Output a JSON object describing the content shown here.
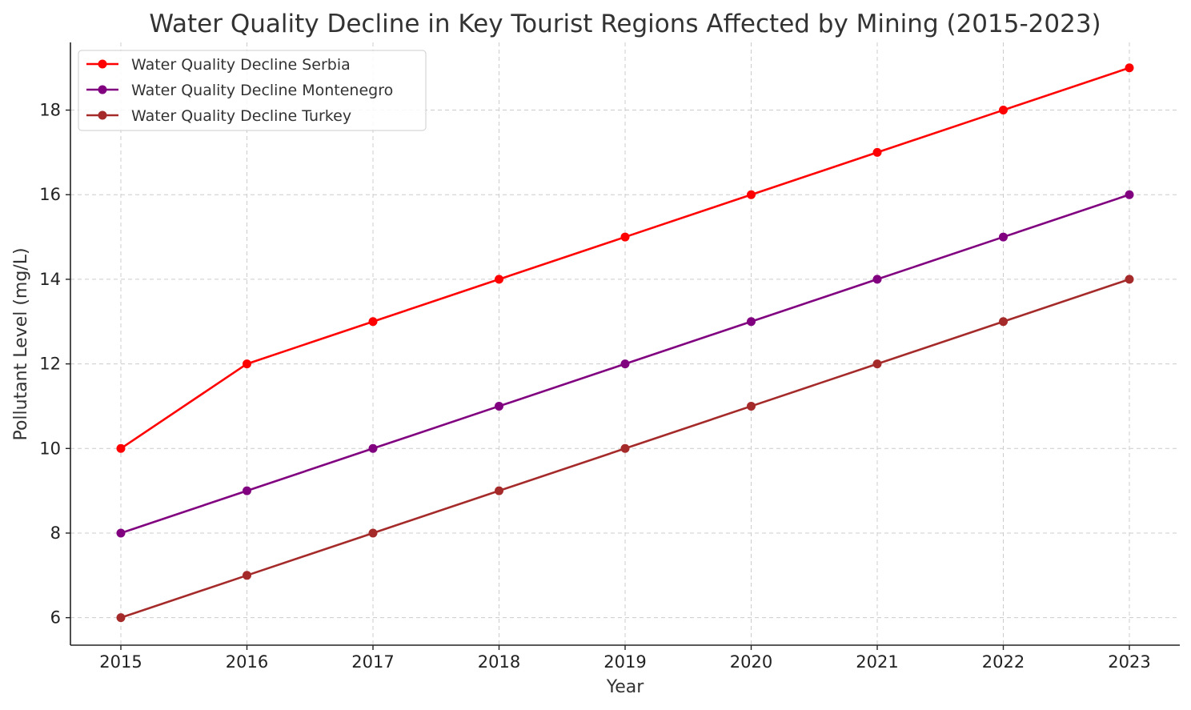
{
  "chart_data": {
    "type": "line",
    "title": "Water Quality Decline in Key Tourist Regions Affected by Mining (2015-2023)",
    "xlabel": "Year",
    "ylabel": "Pollutant Level (mg/L)",
    "x": [
      "2015",
      "2016",
      "2017",
      "2018",
      "2019",
      "2020",
      "2021",
      "2022",
      "2023"
    ],
    "xlim": [
      2014.6,
      2023.4
    ],
    "ylim": [
      5.35,
      19.6
    ],
    "yticks": [
      6,
      8,
      10,
      12,
      14,
      16,
      18
    ],
    "grid": true,
    "legend_position": "top-left",
    "series": [
      {
        "name": "Water Quality Decline Serbia",
        "color": "#ff0000",
        "values": [
          10,
          12,
          13,
          14,
          15,
          16,
          17,
          18,
          19
        ]
      },
      {
        "name": "Water Quality Decline Montenegro",
        "color": "#800080",
        "values": [
          8,
          9,
          10,
          11,
          12,
          13,
          14,
          15,
          16
        ]
      },
      {
        "name": "Water Quality Decline Turkey",
        "color": "#a52a2a",
        "values": [
          6,
          7,
          8,
          9,
          10,
          11,
          12,
          13,
          14
        ]
      }
    ]
  }
}
